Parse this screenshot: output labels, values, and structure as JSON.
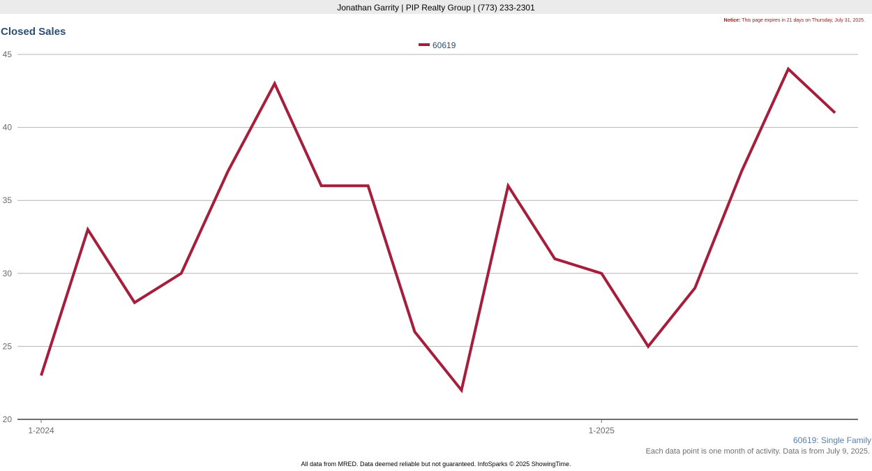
{
  "header": {
    "text": "Jonathan Garrity | PIP Realty Group | (773) 233-2301"
  },
  "notice": {
    "label": "Notice:",
    "text": "This page expires in 21 days on Thursday, July 31, 2025."
  },
  "colors": {
    "series": "#a51e3c",
    "title": "#2a4f75",
    "gridline": "#b4b4b4",
    "axis": "#6e6e6e"
  },
  "chart_data": {
    "type": "line",
    "title": "Closed Sales",
    "xlabel": "",
    "ylabel": "",
    "ylim": [
      20,
      45
    ],
    "yticks": [
      20,
      25,
      30,
      35,
      40,
      45
    ],
    "x_tick_labels": [
      {
        "index": 0,
        "label": "1-2024"
      },
      {
        "index": 12,
        "label": "1-2025"
      }
    ],
    "grid": true,
    "legend_position": "top-center",
    "series": [
      {
        "name": "60619",
        "x": [
          "1-2024",
          "2-2024",
          "3-2024",
          "4-2024",
          "5-2024",
          "6-2024",
          "7-2024",
          "8-2024",
          "9-2024",
          "10-2024",
          "11-2024",
          "12-2024",
          "1-2025",
          "2-2025",
          "3-2025",
          "4-2025",
          "5-2025",
          "6-2025"
        ],
        "values": [
          23,
          33,
          28,
          30,
          37,
          43,
          36,
          36,
          26,
          22,
          36,
          31,
          30,
          25,
          29,
          37,
          44,
          41
        ]
      }
    ]
  },
  "series_caption": "60619: Single Family",
  "footnote": "Each data point is one month of activity. Data is from July 9, 2025.",
  "footer": "All data from MRED. Data deemed reliable but not guaranteed. InfoSparks © 2025 ShowingTime."
}
